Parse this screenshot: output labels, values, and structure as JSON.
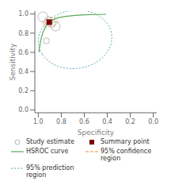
{
  "chart_data": {
    "type": "scatter",
    "xlabel": "Specificity",
    "ylabel": "Sensitivity",
    "xlim": [
      1.03,
      -0.03
    ],
    "ylim": [
      -0.03,
      1.03
    ],
    "xticks": [
      {
        "value": 1,
        "label": "1.0"
      },
      0.8,
      0.6,
      0.4,
      0.2,
      {
        "value": 0,
        "label": "0.0"
      }
    ],
    "yticks": [
      {
        "value": 0,
        "label": "0.0"
      },
      0.2,
      0.4,
      0.6,
      0.8,
      {
        "value": 1,
        "label": "1.0"
      }
    ],
    "grid": false,
    "legend": "bottom",
    "series": [
      {
        "name": "Study estimate",
        "type": "scatter",
        "marker": "circle",
        "color": "#aaaaaa",
        "x": [
          0.96,
          0.91,
          0.88,
          0.85,
          0.93
        ],
        "values": [
          0.97,
          0.93,
          0.9,
          0.87,
          0.72
        ],
        "sizes": [
          80,
          55,
          45,
          70,
          30
        ]
      },
      {
        "name": "Summary point",
        "type": "scatter",
        "marker": "square",
        "color": "#7a0000",
        "x": [
          0.905
        ],
        "values": [
          0.915
        ]
      },
      {
        "name": "HSROC curve",
        "type": "line",
        "line_style": "solid",
        "color": "#5aaa5a",
        "x": [
          0.995,
          0.98,
          0.96,
          0.93,
          0.89,
          0.83,
          0.76,
          0.68,
          0.59,
          0.5,
          0.41
        ],
        "values": [
          0.6,
          0.72,
          0.81,
          0.88,
          0.93,
          0.96,
          0.975,
          0.985,
          0.991,
          0.995,
          0.997
        ]
      },
      {
        "name": "95% confidence\nregion",
        "type": "ellipse",
        "line_style": "dashed",
        "color": "#e89030",
        "ellipse": {
          "cx": 0.895,
          "cy": 0.915,
          "width": 0.13,
          "height": 0.09,
          "angle": -20
        }
      },
      {
        "name": "95% prediction\nregion",
        "type": "ellipse",
        "line_style": "dotted",
        "color": "#50a8b8",
        "ellipse": {
          "cx": 0.68,
          "cy": 0.735,
          "width": 0.65,
          "height": 0.6,
          "angle": -28
        }
      }
    ]
  }
}
